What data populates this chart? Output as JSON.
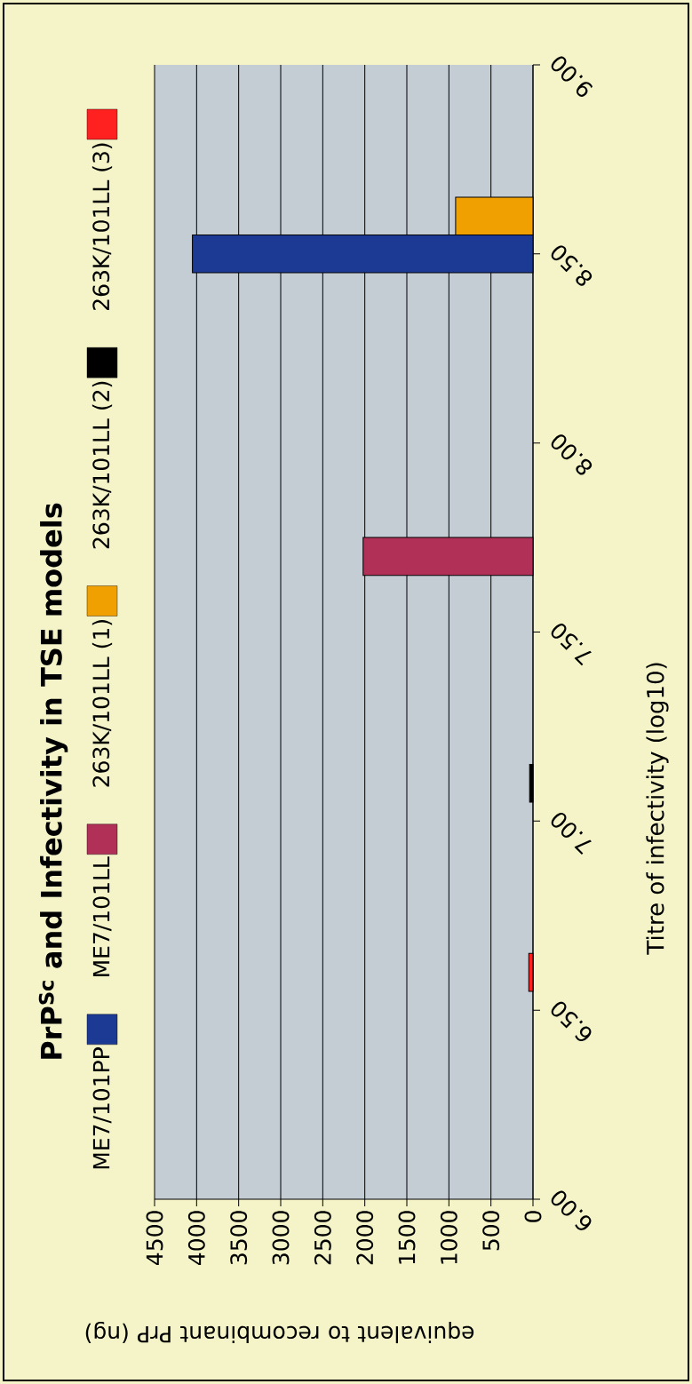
{
  "chart_data": {
    "type": "bar",
    "orientation": "horizontal",
    "title": "PrP$^{Sc}$ and Infectivity in TSE models",
    "xlabel": "equivalent to recombinant PrP (ng)",
    "ylabel": "Titre of infectivity (log10)",
    "xlim": [
      4500,
      0
    ],
    "xticks": [
      4500,
      4000,
      3500,
      3000,
      2500,
      2000,
      1500,
      1000,
      500,
      0
    ],
    "ylim": [
      6,
      9
    ],
    "yticks": [
      {
        "value": 6,
        "label": "6.00"
      },
      {
        "value": 6.5,
        "label": "6.50"
      },
      {
        "value": 7,
        "label": "7.00"
      },
      {
        "value": 7.5,
        "label": "7.50"
      },
      {
        "value": 8,
        "label": "8.00"
      },
      {
        "value": 8.5,
        "label": "8.50"
      },
      {
        "value": 9,
        "label": "9.00"
      }
    ],
    "grid": "x",
    "legend": "left",
    "series": [
      {
        "name": "ME7/101PP",
        "color": "#1c3a94",
        "x": [
          8.5
        ],
        "values": [
          4050
        ]
      },
      {
        "name": "ME7/101LL",
        "color": "#b03058",
        "x": [
          7.7
        ],
        "values": [
          2020
        ]
      },
      {
        "name": "263K/101LL (1)",
        "color": "#f0a000",
        "x": [
          8.6
        ],
        "values": [
          920
        ]
      },
      {
        "name": "263K/101LL (2)",
        "color": "#000000",
        "x": [
          7.1
        ],
        "values": [
          40
        ]
      },
      {
        "name": "263K/101LL (3)",
        "color": "#ff2020",
        "x": [
          6.6
        ],
        "values": [
          50
        ]
      }
    ]
  }
}
